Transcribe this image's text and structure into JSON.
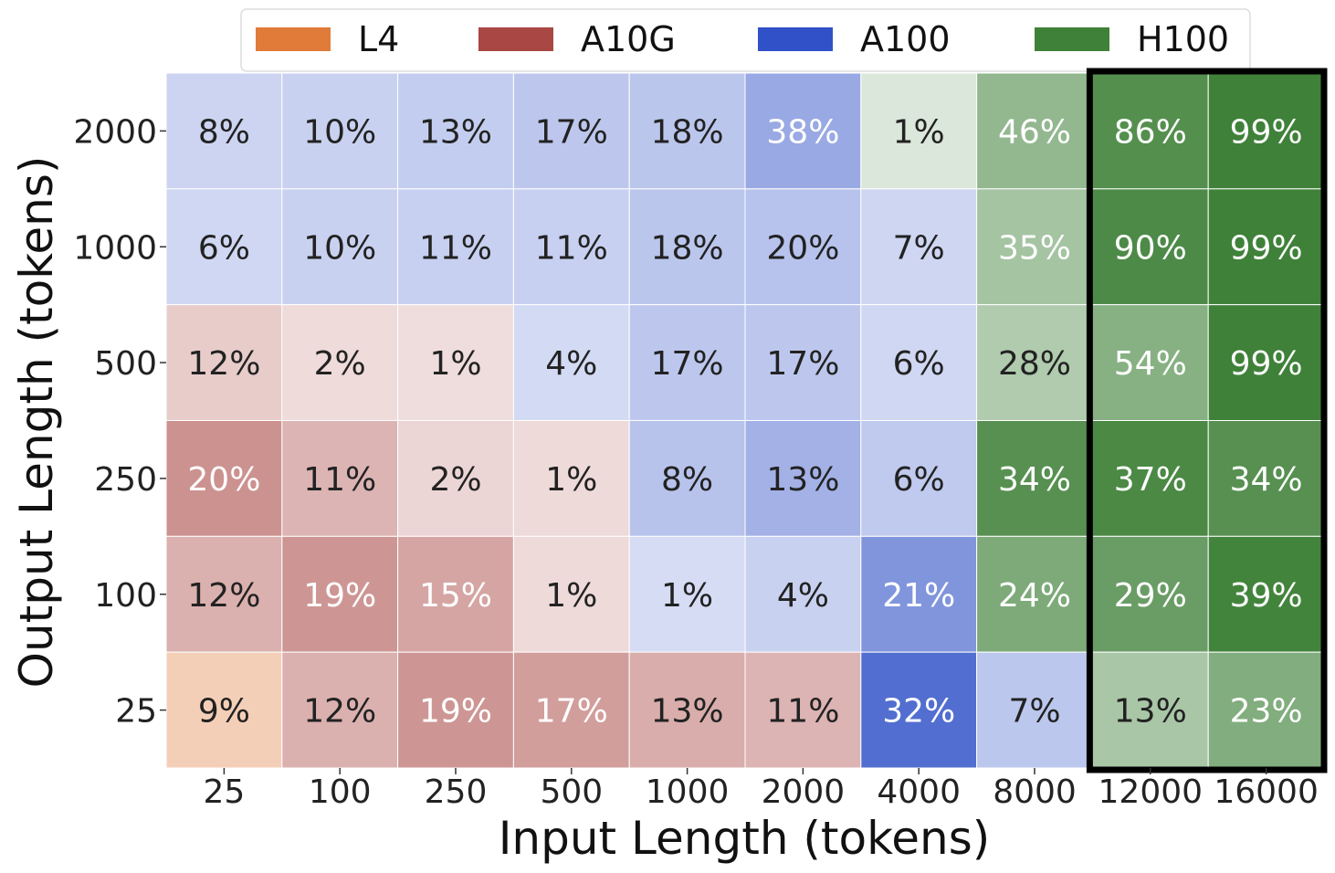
{
  "chart_data": {
    "type": "heatmap",
    "xlabel": "Input Length (tokens)",
    "ylabel": "Output Length (tokens)",
    "x_categories": [
      "25",
      "100",
      "250",
      "500",
      "1000",
      "2000",
      "4000",
      "8000",
      "12000",
      "16000"
    ],
    "y_categories": [
      "2000",
      "1000",
      "500",
      "250",
      "100",
      "25"
    ],
    "legend": {
      "placement": "top",
      "entries": [
        {
          "name": "L4",
          "color": "#e07b39"
        },
        {
          "name": "A10G",
          "color": "#a84743"
        },
        {
          "name": "A100",
          "color": "#3051c7"
        },
        {
          "name": "H100",
          "color": "#3f8139"
        }
      ]
    },
    "highlight_columns": [
      "12000",
      "16000"
    ],
    "cells": [
      [
        {
          "gpu": "A100",
          "value": 8,
          "label": "8%"
        },
        {
          "gpu": "A100",
          "value": 10,
          "label": "10%"
        },
        {
          "gpu": "A100",
          "value": 13,
          "label": "13%"
        },
        {
          "gpu": "A100",
          "value": 17,
          "label": "17%"
        },
        {
          "gpu": "A100",
          "value": 18,
          "label": "18%"
        },
        {
          "gpu": "A100",
          "value": 38,
          "label": "38%"
        },
        {
          "gpu": "H100",
          "value": 1,
          "label": "1%"
        },
        {
          "gpu": "H100",
          "value": 46,
          "label": "46%"
        },
        {
          "gpu": "H100",
          "value": 86,
          "label": "86%"
        },
        {
          "gpu": "H100",
          "value": 99,
          "label": "99%"
        }
      ],
      [
        {
          "gpu": "A100",
          "value": 6,
          "label": "6%"
        },
        {
          "gpu": "A100",
          "value": 10,
          "label": "10%"
        },
        {
          "gpu": "A100",
          "value": 11,
          "label": "11%"
        },
        {
          "gpu": "A100",
          "value": 11,
          "label": "11%"
        },
        {
          "gpu": "A100",
          "value": 18,
          "label": "18%"
        },
        {
          "gpu": "A100",
          "value": 20,
          "label": "20%"
        },
        {
          "gpu": "A100",
          "value": 7,
          "label": "7%"
        },
        {
          "gpu": "H100",
          "value": 35,
          "label": "35%"
        },
        {
          "gpu": "H100",
          "value": 90,
          "label": "90%"
        },
        {
          "gpu": "H100",
          "value": 99,
          "label": "99%"
        }
      ],
      [
        {
          "gpu": "A10G",
          "value": 12,
          "label": "12%"
        },
        {
          "gpu": "A10G",
          "value": 2,
          "label": "2%"
        },
        {
          "gpu": "A10G",
          "value": 1,
          "label": "1%"
        },
        {
          "gpu": "A100",
          "value": 4,
          "label": "4%"
        },
        {
          "gpu": "A100",
          "value": 17,
          "label": "17%"
        },
        {
          "gpu": "A100",
          "value": 17,
          "label": "17%"
        },
        {
          "gpu": "A100",
          "value": 6,
          "label": "6%"
        },
        {
          "gpu": "H100",
          "value": 28,
          "label": "28%"
        },
        {
          "gpu": "H100",
          "value": 54,
          "label": "54%"
        },
        {
          "gpu": "H100",
          "value": 99,
          "label": "99%"
        }
      ],
      [
        {
          "gpu": "A10G",
          "value": 20,
          "label": "20%"
        },
        {
          "gpu": "A10G",
          "value": 11,
          "label": "11%"
        },
        {
          "gpu": "A10G",
          "value": 2,
          "label": "2%"
        },
        {
          "gpu": "A10G",
          "value": 1,
          "label": "1%"
        },
        {
          "gpu": "A100",
          "value": 8,
          "label": "8%"
        },
        {
          "gpu": "A100",
          "value": 13,
          "label": "13%"
        },
        {
          "gpu": "A100",
          "value": 6,
          "label": "6%"
        },
        {
          "gpu": "H100",
          "value": 34,
          "label": "34%"
        },
        {
          "gpu": "H100",
          "value": 37,
          "label": "37%"
        },
        {
          "gpu": "H100",
          "value": 34,
          "label": "34%"
        }
      ],
      [
        {
          "gpu": "A10G",
          "value": 12,
          "label": "12%"
        },
        {
          "gpu": "A10G",
          "value": 19,
          "label": "19%"
        },
        {
          "gpu": "A10G",
          "value": 15,
          "label": "15%"
        },
        {
          "gpu": "A10G",
          "value": 1,
          "label": "1%"
        },
        {
          "gpu": "A100",
          "value": 1,
          "label": "1%"
        },
        {
          "gpu": "A100",
          "value": 4,
          "label": "4%"
        },
        {
          "gpu": "A100",
          "value": 21,
          "label": "21%"
        },
        {
          "gpu": "H100",
          "value": 24,
          "label": "24%"
        },
        {
          "gpu": "H100",
          "value": 29,
          "label": "29%"
        },
        {
          "gpu": "H100",
          "value": 39,
          "label": "39%"
        }
      ],
      [
        {
          "gpu": "L4",
          "value": 9,
          "label": "9%"
        },
        {
          "gpu": "A10G",
          "value": 12,
          "label": "12%"
        },
        {
          "gpu": "A10G",
          "value": 19,
          "label": "19%"
        },
        {
          "gpu": "A10G",
          "value": 17,
          "label": "17%"
        },
        {
          "gpu": "A10G",
          "value": 13,
          "label": "13%"
        },
        {
          "gpu": "A10G",
          "value": 11,
          "label": "11%"
        },
        {
          "gpu": "A100",
          "value": 32,
          "label": "32%"
        },
        {
          "gpu": "A100",
          "value": 7,
          "label": "7%"
        },
        {
          "gpu": "H100",
          "value": 13,
          "label": "13%"
        },
        {
          "gpu": "H100",
          "value": 23,
          "label": "23%"
        }
      ]
    ]
  }
}
